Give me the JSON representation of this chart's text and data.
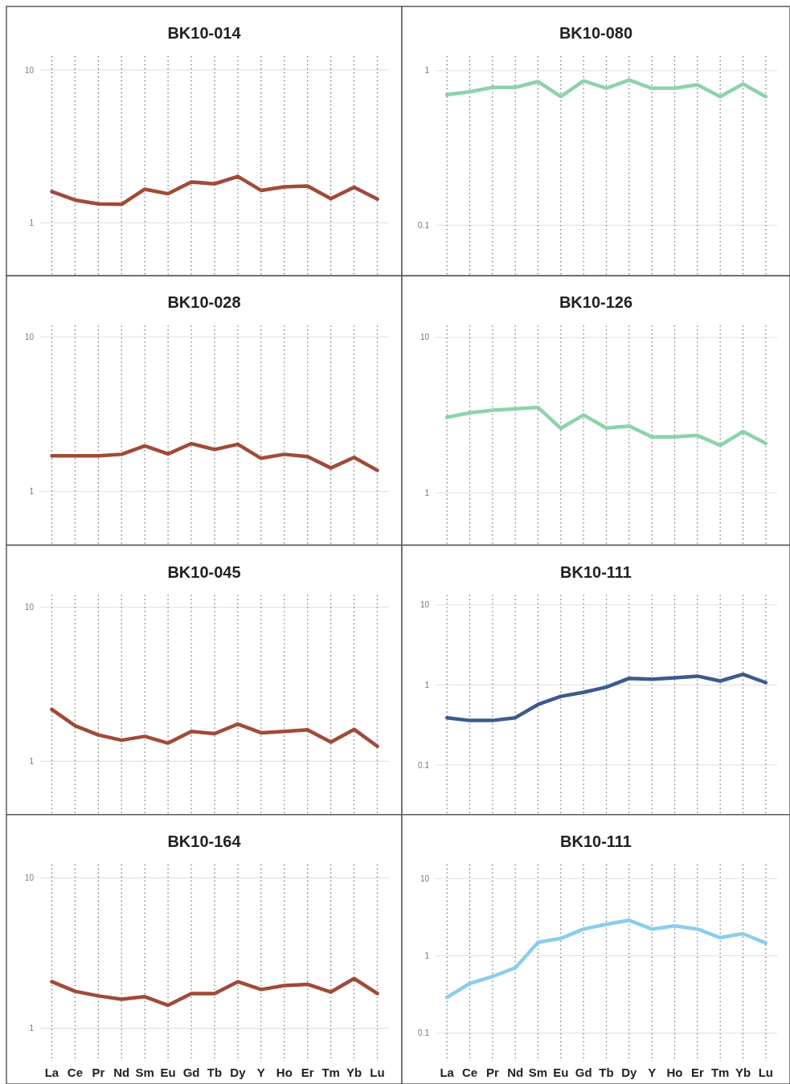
{
  "chart_data": [
    {
      "type": "line",
      "title": "BK10-014",
      "categories": [
        null,
        null,
        null,
        null,
        null,
        null,
        null,
        null,
        null,
        null,
        null,
        null,
        null,
        null,
        null
      ],
      "series": [
        {
          "color": "#a04a38",
          "values": [
            1.6,
            1.41,
            1.33,
            1.32,
            1.66,
            1.55,
            1.85,
            1.8,
            2.01,
            1.63,
            1.72,
            1.74,
            1.44,
            1.71,
            1.43
          ]
        }
      ],
      "ylim": [
        0.45,
        12.3
      ],
      "yticks": [
        1,
        10
      ],
      "log": true,
      "grid": true,
      "tick_labels": "y"
    },
    {
      "type": "line",
      "title": "BK10-080",
      "categories": [
        null,
        null,
        null,
        null,
        null,
        null,
        null,
        null,
        null,
        null,
        null,
        null,
        null,
        null,
        null
      ],
      "series": [
        {
          "color": "#8dd3a8",
          "values": [
            0.7,
            0.73,
            0.78,
            0.78,
            0.85,
            0.68,
            0.86,
            0.77,
            0.87,
            0.77,
            0.77,
            0.81,
            0.68,
            0.82,
            0.68
          ]
        }
      ],
      "ylim": [
        0.047,
        1.24
      ],
      "yticks": [
        0.1,
        1
      ],
      "log": true,
      "grid": true,
      "tick_labels": "y"
    },
    {
      "type": "line",
      "title": "BK10-028",
      "categories": [
        null,
        null,
        null,
        null,
        null,
        null,
        null,
        null,
        null,
        null,
        null,
        null,
        null,
        null,
        null
      ],
      "series": [
        {
          "color": "#a04a38",
          "values": [
            1.7,
            1.7,
            1.7,
            1.74,
            1.97,
            1.75,
            2.04,
            1.87,
            2.02,
            1.64,
            1.74,
            1.68,
            1.42,
            1.66,
            1.37
          ]
        }
      ],
      "ylim": [
        0.45,
        11.8
      ],
      "yticks": [
        1,
        10
      ],
      "log": true,
      "grid": true,
      "tick_labels": "y"
    },
    {
      "type": "line",
      "title": "BK10-126",
      "categories": [
        null,
        null,
        null,
        null,
        null,
        null,
        null,
        null,
        null,
        null,
        null,
        null,
        null,
        null,
        null
      ],
      "series": [
        {
          "color": "#8dd3a8",
          "values": [
            3.06,
            3.27,
            3.4,
            3.47,
            3.54,
            2.6,
            3.17,
            2.61,
            2.69,
            2.29,
            2.29,
            2.34,
            2.02,
            2.48,
            2.08
          ]
        }
      ],
      "ylim": [
        0.46,
        11.9
      ],
      "yticks": [
        1,
        10
      ],
      "log": true,
      "grid": true,
      "tick_labels": "y"
    },
    {
      "type": "line",
      "title": "BK10-045",
      "categories": [
        null,
        null,
        null,
        null,
        null,
        null,
        null,
        null,
        null,
        null,
        null,
        null,
        null,
        null,
        null
      ],
      "series": [
        {
          "color": "#a04a38",
          "values": [
            2.17,
            1.7,
            1.48,
            1.37,
            1.45,
            1.31,
            1.56,
            1.51,
            1.74,
            1.53,
            1.56,
            1.6,
            1.33,
            1.61,
            1.25
          ]
        }
      ],
      "ylim": [
        0.45,
        12
      ],
      "yticks": [
        1,
        10
      ],
      "log": true,
      "grid": true,
      "tick_labels": "y"
    },
    {
      "type": "line",
      "title": "BK10-111",
      "categories": [
        null,
        null,
        null,
        null,
        null,
        null,
        null,
        null,
        null,
        null,
        null,
        null,
        null,
        null,
        null
      ],
      "series": [
        {
          "color": "#3c5a8e",
          "values": [
            0.39,
            0.36,
            0.36,
            0.39,
            0.57,
            0.72,
            0.81,
            0.94,
            1.21,
            1.18,
            1.23,
            1.29,
            1.12,
            1.36,
            1.07
          ]
        }
      ],
      "ylim": [
        0.024,
        13.3
      ],
      "yticks": [
        0.1,
        1,
        10
      ],
      "log": true,
      "grid": true,
      "tick_labels": "y"
    },
    {
      "type": "line",
      "title": "BK10-164",
      "categories": [
        "La",
        "Ce",
        "Pr",
        "Nd",
        "Sm",
        "Eu",
        "Gd",
        "Tb",
        "Dy",
        "Y",
        "Ho",
        "Er",
        "Tm",
        "Yb",
        "Lu"
      ],
      "series": [
        {
          "color": "#a04a38",
          "values": [
            2.04,
            1.76,
            1.64,
            1.56,
            1.62,
            1.42,
            1.7,
            1.7,
            2.04,
            1.81,
            1.92,
            1.96,
            1.74,
            2.14,
            1.7
          ]
        }
      ],
      "ylim": [
        0.6,
        12.3
      ],
      "yticks": [
        1,
        10
      ],
      "log": true,
      "grid": true
    },
    {
      "type": "line",
      "title": "BK10-111",
      "categories": [
        "La",
        "Ce",
        "Pr",
        "Nd",
        "Sm",
        "Eu",
        "Gd",
        "Tb",
        "Dy",
        "Y",
        "Ho",
        "Er",
        "Tm",
        "Yb",
        "Lu"
      ],
      "series": [
        {
          "color": "#8ccdee",
          "values": [
            0.29,
            0.44,
            0.54,
            0.7,
            1.49,
            1.68,
            2.22,
            2.56,
            2.88,
            2.22,
            2.44,
            2.22,
            1.72,
            1.93,
            1.46
          ]
        }
      ],
      "ylim": [
        0.043,
        15.2
      ],
      "yticks": [
        0.1,
        1,
        10
      ],
      "log": true,
      "grid": true
    }
  ]
}
